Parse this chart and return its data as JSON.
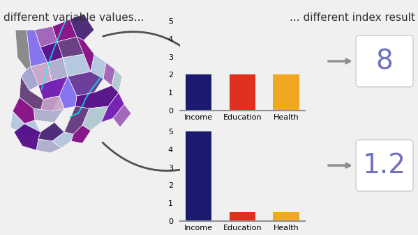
{
  "bg_color": "#f0f0f0",
  "title_left": "different variable values...",
  "title_right": "... different index result",
  "title_fontsize": 11,
  "bar_categories": [
    "Income",
    "Education",
    "Health"
  ],
  "bar_colors": [
    "#1a1a6e",
    "#e03020",
    "#f0a820"
  ],
  "chart1_values": [
    2,
    2,
    2
  ],
  "chart2_values": [
    5,
    0.5,
    0.5
  ],
  "chart1_ylim": [
    0,
    5
  ],
  "chart2_ylim": [
    0,
    5
  ],
  "result1": "8",
  "result2": "1.2",
  "result_color": "#7070c0",
  "result_fontsize": 28,
  "box_color": "#e8e8e8",
  "arrow_color": "#808080",
  "map_colors": [
    "#800080",
    "#9b59b6",
    "#b39ddb",
    "#7986cb",
    "#aec6cf",
    "#c8a2c8",
    "#6a0dad"
  ]
}
